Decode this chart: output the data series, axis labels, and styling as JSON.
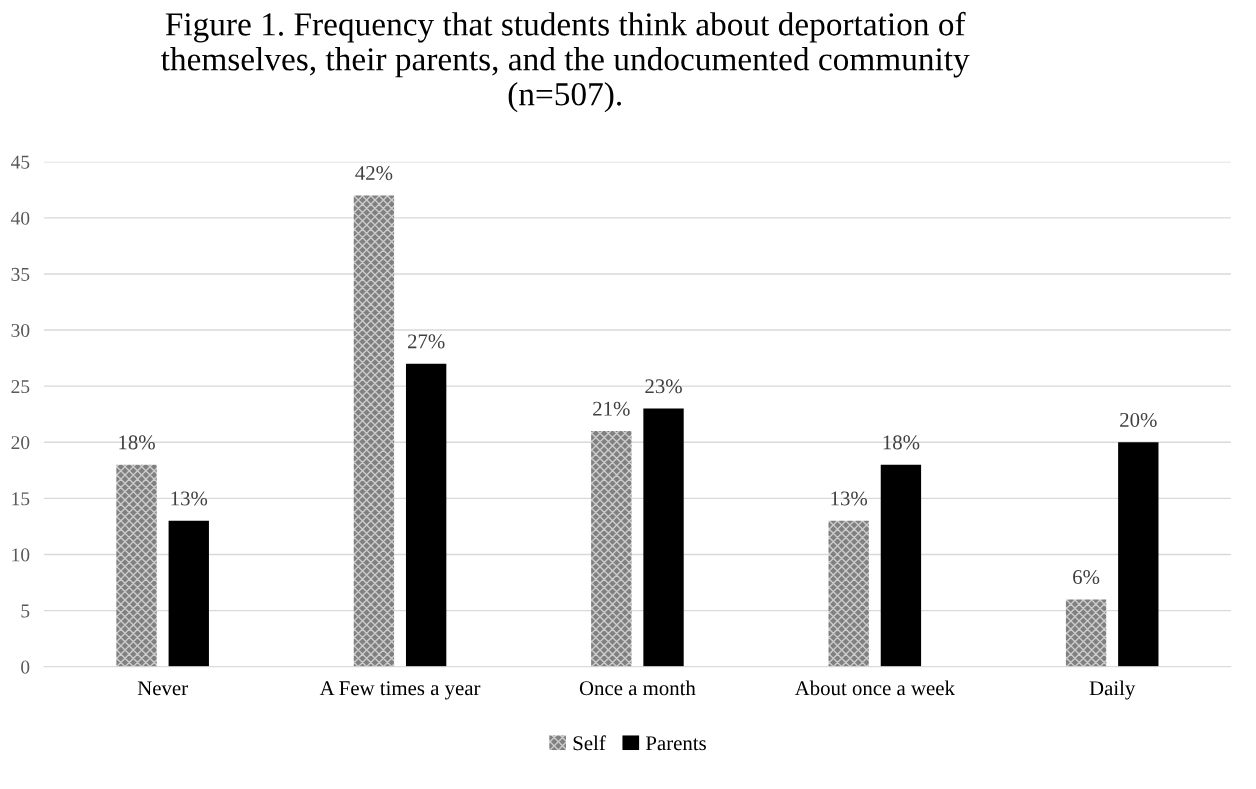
{
  "chart_data": {
    "type": "bar",
    "title": "Figure 1. Frequency that students think about deportation of\nthemselves, their parents, and the undocumented community\n(n=507).",
    "categories": [
      "Never",
      "A Few times a year",
      "Once a month",
      "About once a week",
      "Daily"
    ],
    "series": [
      {
        "name": "Self",
        "color": "#808080",
        "values": [
          18,
          42,
          21,
          13,
          6
        ],
        "value_labels": [
          "18%",
          "42%",
          "21%",
          "13%",
          "6%"
        ]
      },
      {
        "name": "Parents",
        "color": "#000000",
        "values": [
          13,
          27,
          23,
          18,
          20
        ],
        "value_labels": [
          "13%",
          "27%",
          "23%",
          "18%",
          "20%"
        ]
      }
    ],
    "ylim": [
      0,
      45
    ],
    "yticks": [
      0,
      5,
      10,
      15,
      20,
      25,
      30,
      35,
      40,
      45
    ],
    "grid": "y",
    "legend": "bottom"
  }
}
